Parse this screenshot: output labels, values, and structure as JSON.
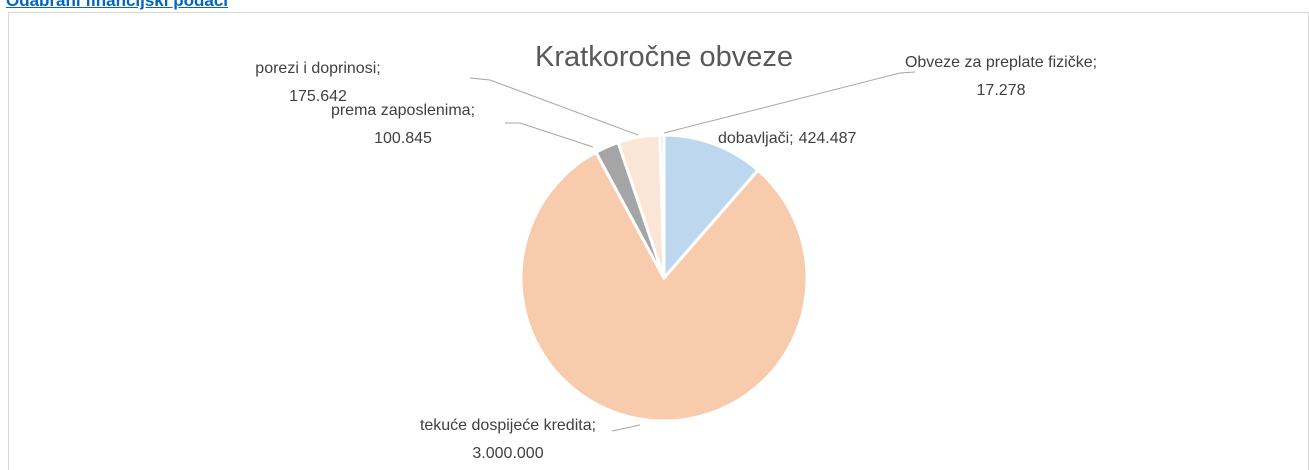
{
  "heading": "Odabrani financijski podaci",
  "chart_data": {
    "type": "pie",
    "title": "Kratkoročne obveze",
    "categories": [
      "dobavljači",
      "tekuće dospijeće kredita",
      "prema zaposlenima",
      "porezi i doprinosi",
      "Obveze za preplate fizičke"
    ],
    "values": [
      424487,
      3000000,
      100845,
      175642,
      17278
    ],
    "value_labels": [
      "424.487",
      "3.000.000",
      "100.845",
      "175.642",
      "17.278"
    ],
    "label_separator": ";",
    "colors": [
      "#bdd7ee",
      "#f8cbad",
      "#a5a5a5",
      "#fbe5d6",
      "#deebf7"
    ]
  }
}
